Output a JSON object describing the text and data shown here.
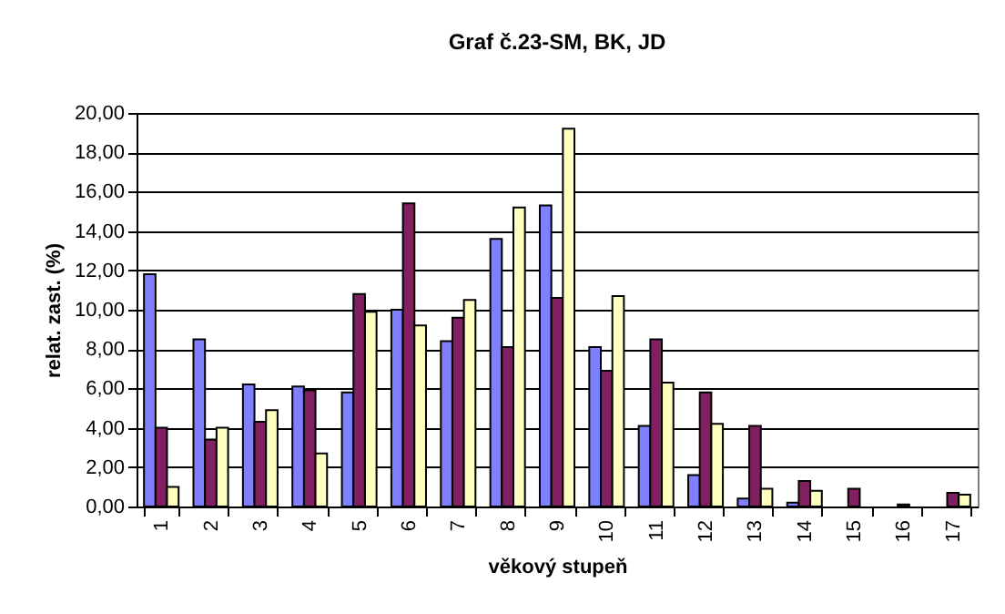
{
  "chart_data": {
    "type": "bar",
    "title": "Graf č.23-SM, BK, JD",
    "xlabel": "věkový stupeň",
    "ylabel": "relat. zast. (%)",
    "categories": [
      "1",
      "2",
      "3",
      "4",
      "5",
      "6",
      "7",
      "8",
      "9",
      "10",
      "11",
      "12",
      "13",
      "14",
      "15",
      "16",
      "17"
    ],
    "series": [
      {
        "color": "#8080ff",
        "values": [
          11.8,
          8.5,
          6.2,
          6.1,
          5.8,
          10.0,
          8.4,
          13.6,
          15.3,
          8.1,
          4.1,
          1.6,
          0.4,
          0.2,
          0,
          0,
          0
        ]
      },
      {
        "color": "#802060",
        "values": [
          4.0,
          3.4,
          4.3,
          5.9,
          10.8,
          15.4,
          9.6,
          8.1,
          10.6,
          6.9,
          8.5,
          5.8,
          4.1,
          1.3,
          0.9,
          0.1,
          0.7
        ]
      },
      {
        "color": "#ffffc0",
        "values": [
          1.0,
          4.0,
          4.9,
          2.7,
          9.9,
          9.2,
          10.5,
          15.2,
          19.2,
          10.7,
          6.3,
          4.2,
          0.9,
          0.8,
          0,
          0,
          0.6
        ]
      }
    ],
    "ylim": [
      0,
      20
    ],
    "yticks": [
      {
        "value": 0,
        "label": "0,00"
      },
      {
        "value": 2,
        "label": "2,00"
      },
      {
        "value": 4,
        "label": "4,00"
      },
      {
        "value": 6,
        "label": "6,00"
      },
      {
        "value": 8,
        "label": "8,00"
      },
      {
        "value": 10,
        "label": "10,00"
      },
      {
        "value": 12,
        "label": "12,00"
      },
      {
        "value": 14,
        "label": "14,00"
      },
      {
        "value": 16,
        "label": "16,00"
      },
      {
        "value": 18,
        "label": "18,00"
      },
      {
        "value": 20,
        "label": "20,00"
      }
    ],
    "grid": "y",
    "legend": false
  }
}
